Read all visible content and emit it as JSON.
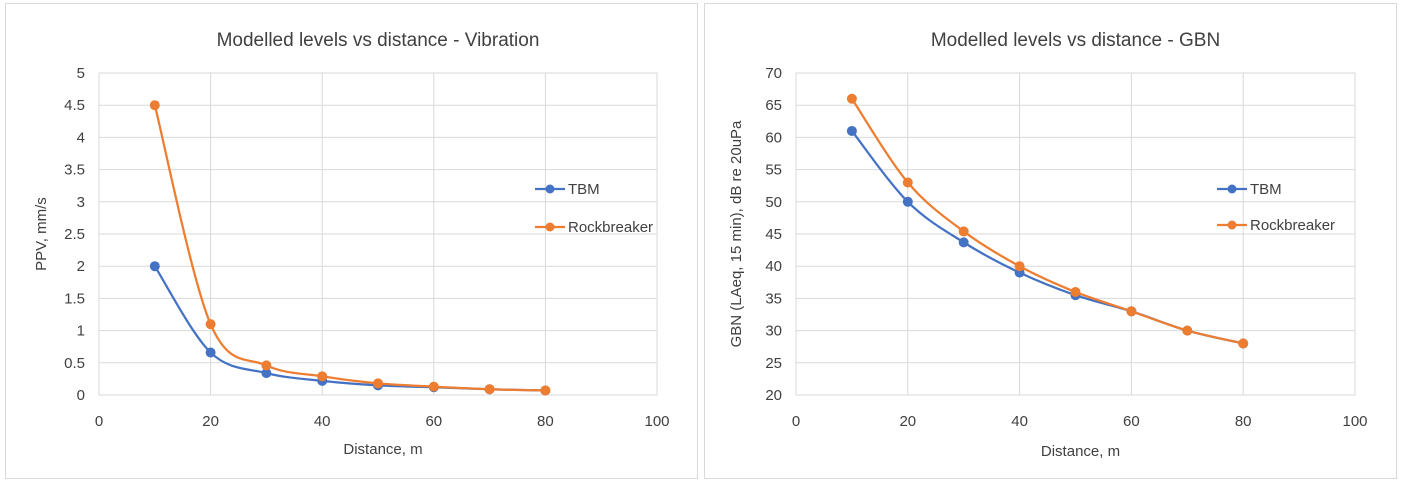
{
  "chart_data": [
    {
      "type": "line",
      "title": "Modelled levels vs distance - Vibration",
      "xlabel": "Distance, m",
      "ylabel": "PPV, mm/s",
      "xlim": [
        0,
        100
      ],
      "ylim": [
        0,
        5
      ],
      "xticks": [
        0,
        20,
        40,
        60,
        80,
        100
      ],
      "yticks": [
        0,
        0.5,
        1,
        1.5,
        2,
        2.5,
        3,
        3.5,
        4,
        4.5,
        5
      ],
      "xtick_labels": [
        "0",
        "20",
        "40",
        "60",
        "80",
        "100"
      ],
      "ytick_labels": [
        "0",
        "0.5",
        "1",
        "1.5",
        "2",
        "2.5",
        "3",
        "3.5",
        "4",
        "4.5",
        "5"
      ],
      "grid": true,
      "legend": "right",
      "x": [
        10,
        20,
        30,
        40,
        50,
        60,
        70,
        80
      ],
      "series": [
        {
          "name": "TBM",
          "color": "#4472c4",
          "values": [
            2.0,
            0.66,
            0.34,
            0.22,
            0.15,
            0.12,
            0.09,
            0.07
          ]
        },
        {
          "name": "Rockbreaker",
          "color": "#ed7d31",
          "values": [
            4.5,
            1.1,
            0.46,
            0.29,
            0.18,
            0.13,
            0.09,
            0.07
          ]
        }
      ]
    },
    {
      "type": "line",
      "title": "Modelled levels vs distance - GBN",
      "xlabel": "Distance, m",
      "ylabel": "GBN (LAeq, 15 min), dB re 20uPa",
      "xlim": [
        0,
        100
      ],
      "ylim": [
        20,
        70
      ],
      "xticks": [
        0,
        20,
        40,
        60,
        80,
        100
      ],
      "yticks": [
        20,
        25,
        30,
        35,
        40,
        45,
        50,
        55,
        60,
        65,
        70
      ],
      "xtick_labels": [
        "0",
        "20",
        "40",
        "60",
        "80",
        "100"
      ],
      "ytick_labels": [
        "20",
        "25",
        "30",
        "35",
        "40",
        "45",
        "50",
        "55",
        "60",
        "65",
        "70"
      ],
      "grid": true,
      "legend": "right",
      "x": [
        10,
        20,
        30,
        40,
        50,
        60,
        70,
        80
      ],
      "series": [
        {
          "name": "TBM",
          "color": "#4472c4",
          "values": [
            61,
            50,
            43.7,
            39,
            35.5,
            33,
            30,
            28
          ]
        },
        {
          "name": "Rockbreaker",
          "color": "#ed7d31",
          "values": [
            66,
            53,
            45.4,
            40,
            36,
            33,
            30,
            28
          ]
        }
      ]
    }
  ]
}
